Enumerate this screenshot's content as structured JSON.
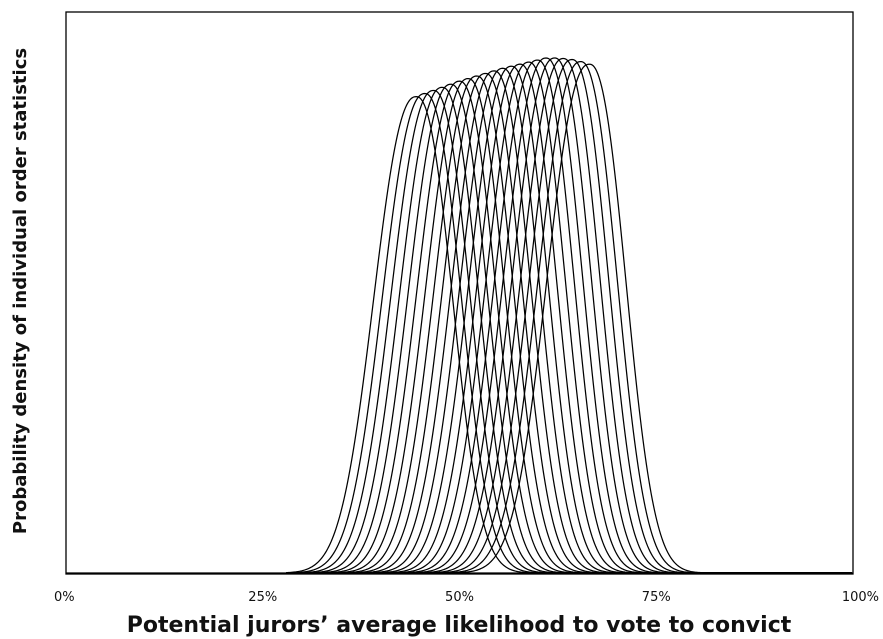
{
  "chart_data": {
    "type": "line",
    "title": "",
    "xlabel": "Potential jurors’ average likelihood to vote to convict",
    "ylabel": "Probability density of individual order statistics",
    "x_ticks": [
      "0%",
      "25%",
      "50%",
      "75%",
      "100%"
    ],
    "xlim": [
      0,
      100
    ],
    "y_axis_ticks_shown": false,
    "grid": false,
    "legend": "none",
    "line_color": "#000000",
    "curve_count": 21,
    "series": [
      {
        "peak_x": 44.5,
        "peak_density": 0.925
      },
      {
        "peak_x": 45.6,
        "peak_density": 0.931
      },
      {
        "peak_x": 46.7,
        "peak_density": 0.937
      },
      {
        "peak_x": 47.8,
        "peak_density": 0.943
      },
      {
        "peak_x": 48.9,
        "peak_density": 0.949
      },
      {
        "peak_x": 50.0,
        "peak_density": 0.955
      },
      {
        "peak_x": 51.1,
        "peak_density": 0.96
      },
      {
        "peak_x": 52.2,
        "peak_density": 0.965
      },
      {
        "peak_x": 53.3,
        "peak_density": 0.97
      },
      {
        "peak_x": 54.4,
        "peak_density": 0.975
      },
      {
        "peak_x": 55.5,
        "peak_density": 0.98
      },
      {
        "peak_x": 56.6,
        "peak_density": 0.984
      },
      {
        "peak_x": 57.7,
        "peak_density": 0.988
      },
      {
        "peak_x": 58.8,
        "peak_density": 0.992
      },
      {
        "peak_x": 59.9,
        "peak_density": 0.996
      },
      {
        "peak_x": 61.0,
        "peak_density": 1.0
      },
      {
        "peak_x": 62.1,
        "peak_density": 1.0
      },
      {
        "peak_x": 63.2,
        "peak_density": 0.999
      },
      {
        "peak_x": 64.3,
        "peak_density": 0.997
      },
      {
        "peak_x": 65.4,
        "peak_density": 0.993
      },
      {
        "peak_x": 66.5,
        "peak_density": 0.988
      }
    ]
  }
}
